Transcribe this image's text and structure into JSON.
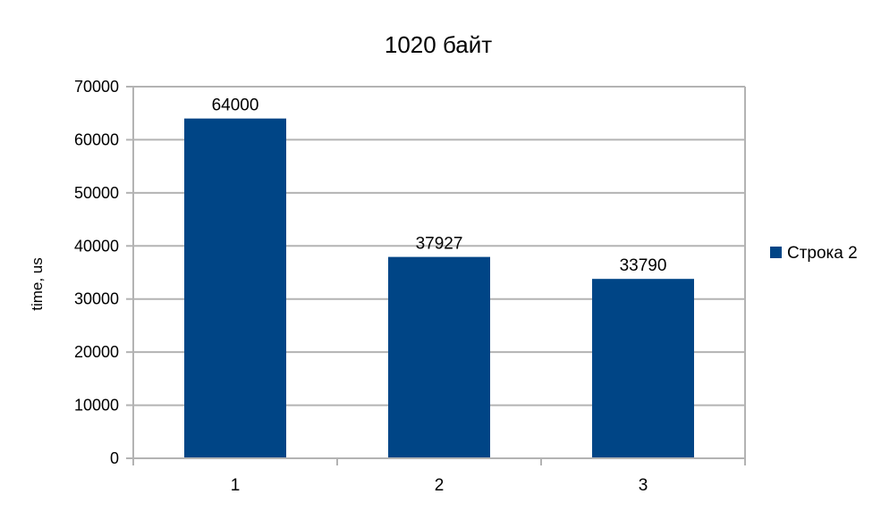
{
  "chart_data": {
    "type": "bar",
    "title": "1020 байт",
    "xlabel": "",
    "ylabel": "time, us",
    "categories": [
      "1",
      "2",
      "3"
    ],
    "series": [
      {
        "name": "Строка 2",
        "values": [
          64000,
          37927,
          33790
        ]
      }
    ],
    "data_labels": [
      "64000",
      "37927",
      "33790"
    ],
    "y_ticks": [
      0,
      10000,
      20000,
      30000,
      40000,
      50000,
      60000,
      70000
    ],
    "ylim": [
      0,
      70000
    ],
    "grid": true,
    "legend": "right",
    "colors": {
      "bar": "#004586",
      "grid": "#b3b3b3",
      "axis": "#b3b3b3"
    }
  }
}
